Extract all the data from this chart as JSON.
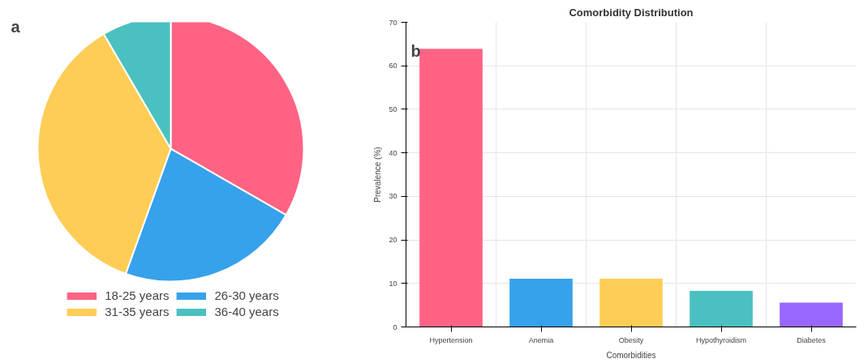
{
  "chart_data": [
    {
      "type": "pie",
      "annotations": [
        "a"
      ],
      "categories": [
        "18-25 years",
        "26-30 years",
        "31-35 years",
        "36-40 years"
      ],
      "values": [
        33.3,
        22.2,
        36.1,
        8.4
      ],
      "colors": [
        "#ff6384",
        "#36a2eb",
        "#ffcd56",
        "#4bc0c0"
      ],
      "legend": "bottom"
    },
    {
      "type": "bar",
      "annotations": [
        "b"
      ],
      "title": "Comorbidity Distribution",
      "xlabel": "Comorbidities",
      "ylabel": "Prevalence (%)",
      "categories": [
        "Hypertension",
        "Anemia",
        "Obesity",
        "Hypothyroidism",
        "Diabetes"
      ],
      "values": [
        63.9,
        11.1,
        11.1,
        8.3,
        5.6
      ],
      "colors": [
        "#ff6384",
        "#36a2eb",
        "#ffcd56",
        "#4bc0c0",
        "#9966ff"
      ],
      "ylim": [
        0,
        70
      ],
      "yticks": [
        0,
        10,
        20,
        30,
        40,
        50,
        60,
        70
      ],
      "grid": true
    }
  ]
}
